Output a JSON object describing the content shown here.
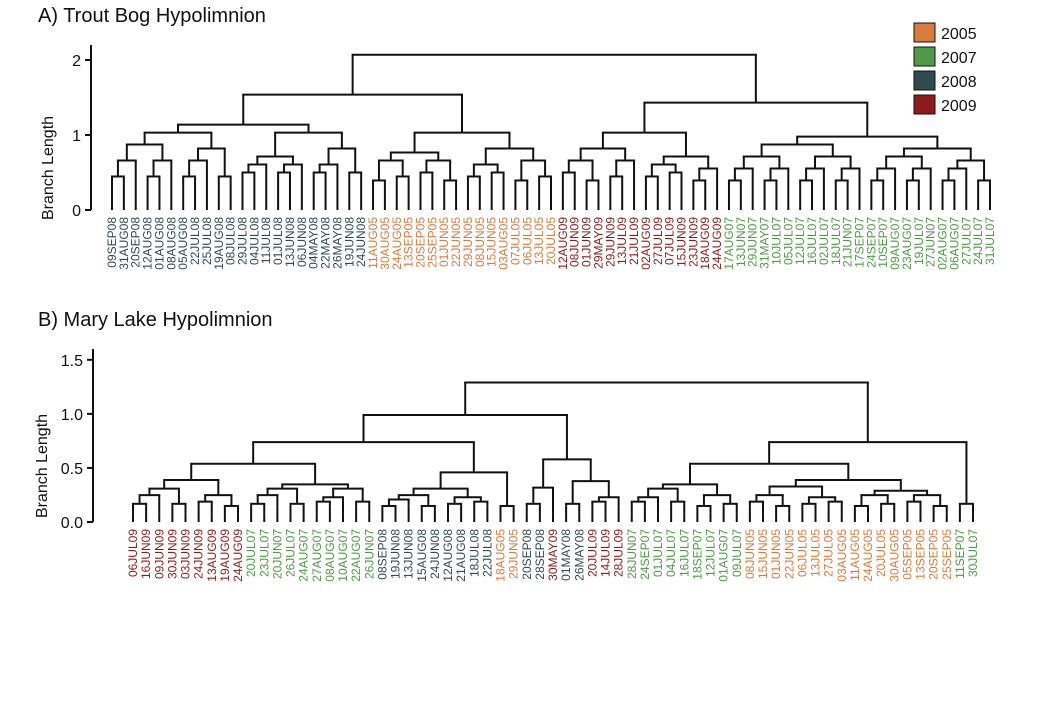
{
  "legend": [
    {
      "label": "2005",
      "color": "#d97b3c"
    },
    {
      "label": "2007",
      "color": "#4e9a45"
    },
    {
      "label": "2008",
      "color": "#304b4b"
    },
    {
      "label": "2009",
      "color": "#8e1a1a"
    }
  ],
  "chart_data": [
    {
      "type": "dendrogram",
      "title": "A) Trout Bog Hypolimnion",
      "ylabel": "Branch Length",
      "ylim": [
        0,
        2.2
      ],
      "yticks": [
        0,
        1,
        2
      ],
      "root_height": 2.07,
      "leaves": [
        {
          "label": "09SEP08",
          "year": "2008"
        },
        {
          "label": "31AUG08",
          "year": "2008"
        },
        {
          "label": "20SEP08",
          "year": "2008"
        },
        {
          "label": "12AUG08",
          "year": "2008"
        },
        {
          "label": "01AUG08",
          "year": "2008"
        },
        {
          "label": "08AUG08",
          "year": "2008"
        },
        {
          "label": "05AUG08",
          "year": "2008"
        },
        {
          "label": "22JUL08",
          "year": "2008"
        },
        {
          "label": "25JUL08",
          "year": "2008"
        },
        {
          "label": "19AUG08",
          "year": "2008"
        },
        {
          "label": "08JUL08",
          "year": "2008"
        },
        {
          "label": "29JUL08",
          "year": "2008"
        },
        {
          "label": "04JUL08",
          "year": "2008"
        },
        {
          "label": "11JUL08",
          "year": "2008"
        },
        {
          "label": "01JUL08",
          "year": "2008"
        },
        {
          "label": "13JUN08",
          "year": "2008"
        },
        {
          "label": "06JUN08",
          "year": "2008"
        },
        {
          "label": "04MAY08",
          "year": "2008"
        },
        {
          "label": "22MAY08",
          "year": "2008"
        },
        {
          "label": "26MAY08",
          "year": "2008"
        },
        {
          "label": "19JUN08",
          "year": "2008"
        },
        {
          "label": "24JUN08",
          "year": "2008"
        },
        {
          "label": "11AUG05",
          "year": "2005"
        },
        {
          "label": "30AUG05",
          "year": "2005"
        },
        {
          "label": "24AUG05",
          "year": "2005"
        },
        {
          "label": "13SEP05",
          "year": "2005"
        },
        {
          "label": "20SEP05",
          "year": "2005"
        },
        {
          "label": "25SEP05",
          "year": "2005"
        },
        {
          "label": "01JUN05",
          "year": "2005"
        },
        {
          "label": "22JUN05",
          "year": "2005"
        },
        {
          "label": "29JUN05",
          "year": "2005"
        },
        {
          "label": "08JUN05",
          "year": "2005"
        },
        {
          "label": "15JUN05",
          "year": "2005"
        },
        {
          "label": "03AUG05",
          "year": "2005"
        },
        {
          "label": "07JUL05",
          "year": "2005"
        },
        {
          "label": "06JUL05",
          "year": "2005"
        },
        {
          "label": "13JUL05",
          "year": "2005"
        },
        {
          "label": "20JUL05",
          "year": "2005"
        },
        {
          "label": "12AUG09",
          "year": "2009"
        },
        {
          "label": "08JUN09",
          "year": "2009"
        },
        {
          "label": "01JUN09",
          "year": "2009"
        },
        {
          "label": "29MAY09",
          "year": "2009"
        },
        {
          "label": "29JUN09",
          "year": "2009"
        },
        {
          "label": "13JUL09",
          "year": "2009"
        },
        {
          "label": "21JUL09",
          "year": "2009"
        },
        {
          "label": "02AUG09",
          "year": "2009"
        },
        {
          "label": "27JUL09",
          "year": "2009"
        },
        {
          "label": "07JUL09",
          "year": "2009"
        },
        {
          "label": "15JUN09",
          "year": "2009"
        },
        {
          "label": "23JUN09",
          "year": "2009"
        },
        {
          "label": "18AUG09",
          "year": "2009"
        },
        {
          "label": "24AUG09",
          "year": "2009"
        },
        {
          "label": "17AUG07",
          "year": "2007"
        },
        {
          "label": "13JUN07",
          "year": "2007"
        },
        {
          "label": "29JUN07",
          "year": "2007"
        },
        {
          "label": "31MAY07",
          "year": "2007"
        },
        {
          "label": "10JUL07",
          "year": "2007"
        },
        {
          "label": "05JUL07",
          "year": "2007"
        },
        {
          "label": "12JUL07",
          "year": "2007"
        },
        {
          "label": "16JUL07",
          "year": "2007"
        },
        {
          "label": "02JUL07",
          "year": "2007"
        },
        {
          "label": "18JUL07",
          "year": "2007"
        },
        {
          "label": "21JUN07",
          "year": "2007"
        },
        {
          "label": "17SEP07",
          "year": "2007"
        },
        {
          "label": "24SEP07",
          "year": "2007"
        },
        {
          "label": "10SEP07",
          "year": "2007"
        },
        {
          "label": "09AUG07",
          "year": "2007"
        },
        {
          "label": "23AUG07",
          "year": "2007"
        },
        {
          "label": "19JUL07",
          "year": "2007"
        },
        {
          "label": "27JUN07",
          "year": "2007"
        },
        {
          "label": "02AUG07",
          "year": "2007"
        },
        {
          "label": "06AUG07",
          "year": "2007"
        },
        {
          "label": "27JUL07",
          "year": "2007"
        },
        {
          "label": "24JUL07",
          "year": "2007"
        },
        {
          "label": "31JUL07",
          "year": "2007"
        }
      ]
    },
    {
      "type": "dendrogram",
      "title": "B) Mary Lake Hypolimnion",
      "ylabel": "Branch Length",
      "ylim": [
        0,
        1.6
      ],
      "yticks": [
        0.0,
        0.5,
        1.0,
        1.5
      ],
      "root_height": 1.29,
      "leaves": [
        {
          "label": "06JUL09",
          "year": "2009"
        },
        {
          "label": "16JUN09",
          "year": "2009"
        },
        {
          "label": "09JUN09",
          "year": "2009"
        },
        {
          "label": "30JUN09",
          "year": "2009"
        },
        {
          "label": "03JUN09",
          "year": "2009"
        },
        {
          "label": "24JUN09",
          "year": "2009"
        },
        {
          "label": "13AUG09",
          "year": "2009"
        },
        {
          "label": "19AUG09",
          "year": "2009"
        },
        {
          "label": "24AUG09",
          "year": "2009"
        },
        {
          "label": "20JUL07",
          "year": "2007"
        },
        {
          "label": "23JUL07",
          "year": "2007"
        },
        {
          "label": "20JUN07",
          "year": "2007"
        },
        {
          "label": "26JUL07",
          "year": "2007"
        },
        {
          "label": "24AUG07",
          "year": "2007"
        },
        {
          "label": "27AUG07",
          "year": "2007"
        },
        {
          "label": "08AUG07",
          "year": "2007"
        },
        {
          "label": "10AUG07",
          "year": "2007"
        },
        {
          "label": "22AUG07",
          "year": "2007"
        },
        {
          "label": "26JUN07",
          "year": "2007"
        },
        {
          "label": "08SEP08",
          "year": "2008"
        },
        {
          "label": "19JUN08",
          "year": "2008"
        },
        {
          "label": "13JUN08",
          "year": "2008"
        },
        {
          "label": "15AUG08",
          "year": "2008"
        },
        {
          "label": "24JUN08",
          "year": "2008"
        },
        {
          "label": "12AUG08",
          "year": "2008"
        },
        {
          "label": "21AUG08",
          "year": "2008"
        },
        {
          "label": "18JUL08",
          "year": "2008"
        },
        {
          "label": "22JUL08",
          "year": "2008"
        },
        {
          "label": "18AUG05",
          "year": "2005"
        },
        {
          "label": "29JUN05",
          "year": "2005"
        },
        {
          "label": "20SEP08",
          "year": "2008"
        },
        {
          "label": "28SEP08",
          "year": "2008"
        },
        {
          "label": "30MAY09",
          "year": "2009"
        },
        {
          "label": "01MAY08",
          "year": "2008"
        },
        {
          "label": "26MAY08",
          "year": "2008"
        },
        {
          "label": "20JUL09",
          "year": "2009"
        },
        {
          "label": "14JUL09",
          "year": "2009"
        },
        {
          "label": "28JUL09",
          "year": "2009"
        },
        {
          "label": "28JUN07",
          "year": "2007"
        },
        {
          "label": "24SEP07",
          "year": "2007"
        },
        {
          "label": "01JUL07",
          "year": "2007"
        },
        {
          "label": "04JUL07",
          "year": "2007"
        },
        {
          "label": "16JUL07",
          "year": "2007"
        },
        {
          "label": "18SEP07",
          "year": "2007"
        },
        {
          "label": "12JUL07",
          "year": "2007"
        },
        {
          "label": "01AUG07",
          "year": "2007"
        },
        {
          "label": "09JUL07",
          "year": "2007"
        },
        {
          "label": "08JUN05",
          "year": "2005"
        },
        {
          "label": "15JUN05",
          "year": "2005"
        },
        {
          "label": "01JUN05",
          "year": "2005"
        },
        {
          "label": "22JUN05",
          "year": "2005"
        },
        {
          "label": "06JUL05",
          "year": "2005"
        },
        {
          "label": "13JUL05",
          "year": "2005"
        },
        {
          "label": "27JUL05",
          "year": "2005"
        },
        {
          "label": "03AUG05",
          "year": "2005"
        },
        {
          "label": "11AUG05",
          "year": "2005"
        },
        {
          "label": "24AUG05",
          "year": "2005"
        },
        {
          "label": "20JUL05",
          "year": "2005"
        },
        {
          "label": "30AUG05",
          "year": "2005"
        },
        {
          "label": "05SEP05",
          "year": "2005"
        },
        {
          "label": "13SEP05",
          "year": "2005"
        },
        {
          "label": "20SEP05",
          "year": "2005"
        },
        {
          "label": "25SEP05",
          "year": "2005"
        },
        {
          "label": "11SEP07",
          "year": "2007"
        },
        {
          "label": "30JUL07",
          "year": "2007"
        }
      ]
    }
  ]
}
